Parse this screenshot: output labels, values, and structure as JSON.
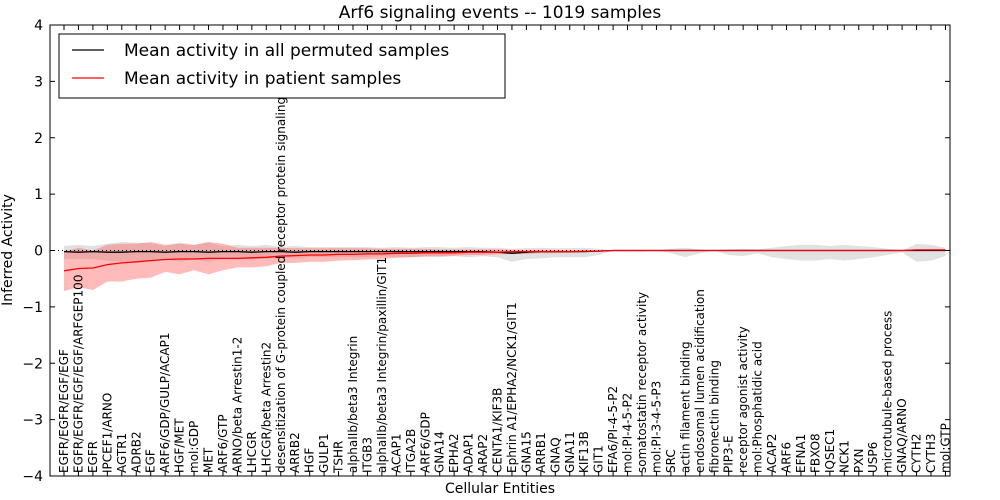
{
  "chart_data": {
    "type": "line",
    "title": "Arf6 signaling events -- 1019 samples",
    "xlabel": "Cellular Entities",
    "ylabel": "Inferred Activity",
    "ylim": [
      -4,
      4
    ],
    "yticks": [
      4,
      3,
      2,
      1,
      0,
      -1,
      -2,
      -3,
      -4
    ],
    "ytick_labels": [
      "4",
      "3",
      "2",
      "1",
      "0",
      "−1",
      "−2",
      "−3",
      "−4"
    ],
    "legend_position": "top-left",
    "legend": [
      {
        "label": "Mean activity in all permuted samples",
        "color": "#000000"
      },
      {
        "label": "Mean activity in patient samples",
        "color": "#ff0000"
      }
    ],
    "zero_line_style": "dotted",
    "categories": [
      "EGFR/EGFR/EGF/EGF",
      "EGFR/EGFR/EGF/EGF/ARFGEP100",
      "EGFR",
      "IPCEF1/ARNO",
      "AGTR1",
      "ADRB2",
      "EGF",
      "ARF6/GDP/GULP/ACAP1",
      "HGF/MET",
      "mol:GDP",
      "MET",
      "ARF6/GTP",
      "ARNO/beta Arrestin1-2",
      "LHCGR",
      "LHCGR/beta Arrestin2",
      "desensitization of G-protein coupled receptor protein signaling pathway",
      "ARRB2",
      "HGF",
      "GULP1",
      "TSHR",
      "alphaIIb/beta3 Integrin",
      "ITGB3",
      "alphaIIb/beta3 Integrin/paxillin/GIT1",
      "ACAP1",
      "ITGA2B",
      "ARF6/GDP",
      "GNA14",
      "EPHA2",
      "ADAP1",
      "ARAP2",
      "CENTA1/KIF3B",
      "Ephrin A1/EPHA2/NCK1/GIT1",
      "GNA15",
      "ARRB1",
      "GNAQ",
      "GNA11",
      "KIF13B",
      "GIT1",
      "EFA6/PI-4-5-P2",
      "mol:PI-4-5-P2",
      "somatostatin receptor activity",
      "mol:PI-3-4-5-P3",
      "SRC",
      "actin filament binding",
      "endosomal lumen acidification",
      "fibronectin binding",
      "PIP3-E",
      "receptor agonist activity",
      "mol:Phosphatidic acid",
      "ACAP2",
      "ARF6",
      "EFNA1",
      "FBXO8",
      "IQSEC1",
      "NCK1",
      "PXN",
      "USP6",
      "microtubule-based process",
      "GNAQ/ARNO",
      "CYTH2",
      "CYTH3",
      "mol:GTP"
    ],
    "series": [
      {
        "name": "Mean activity in all permuted samples",
        "color": "#000000",
        "values": [
          -0.02,
          -0.03,
          -0.02,
          -0.03,
          -0.03,
          -0.02,
          -0.02,
          -0.03,
          -0.02,
          -0.02,
          -0.03,
          -0.02,
          -0.02,
          -0.03,
          -0.02,
          -0.02,
          -0.03,
          -0.02,
          -0.02,
          -0.02,
          -0.02,
          -0.02,
          -0.02,
          -0.02,
          -0.02,
          -0.02,
          -0.02,
          -0.02,
          -0.02,
          -0.02,
          -0.03,
          -0.05,
          -0.03,
          -0.02,
          -0.02,
          -0.02,
          -0.02,
          -0.01,
          0,
          0,
          0,
          0,
          0,
          0,
          0,
          0,
          0,
          0,
          0,
          0,
          0,
          0,
          0,
          0,
          0,
          0,
          0,
          0,
          0,
          0,
          0,
          0
        ],
        "band_upper": [
          0.08,
          0.1,
          0.08,
          0.12,
          0.15,
          0.14,
          0.13,
          0.08,
          0.14,
          0.1,
          0.14,
          0.08,
          0.1,
          0.08,
          0.1,
          0.07,
          0.08,
          0.06,
          0.06,
          0.06,
          0.06,
          0.06,
          0.05,
          0.06,
          0.05,
          0.06,
          0.06,
          0.05,
          0.06,
          0.05,
          0.05,
          0.03,
          0.04,
          0.05,
          0.04,
          0.04,
          0.05,
          0.03,
          0,
          0,
          0,
          0,
          0.03,
          0.05,
          0.02,
          0,
          0.02,
          0.03,
          0.02,
          0.05,
          0.08,
          0.1,
          0.1,
          0.08,
          0.1,
          0.08,
          0.06,
          0.03,
          0,
          0.12,
          0.1,
          0.05
        ],
        "band_lower": [
          -0.15,
          -0.15,
          -0.15,
          -0.18,
          -0.2,
          -0.18,
          -0.2,
          -0.15,
          -0.2,
          -0.16,
          -0.2,
          -0.15,
          -0.16,
          -0.15,
          -0.15,
          -0.12,
          -0.14,
          -0.12,
          -0.12,
          -0.12,
          -0.12,
          -0.12,
          -0.1,
          -0.12,
          -0.12,
          -0.1,
          -0.12,
          -0.1,
          -0.12,
          -0.1,
          -0.12,
          -0.2,
          -0.15,
          -0.14,
          -0.12,
          -0.12,
          -0.12,
          -0.08,
          0,
          0,
          -0.02,
          0,
          -0.05,
          -0.12,
          -0.05,
          0,
          -0.08,
          -0.1,
          -0.05,
          -0.12,
          -0.15,
          -0.18,
          -0.18,
          -0.15,
          -0.18,
          -0.15,
          -0.12,
          -0.08,
          -0.03,
          -0.2,
          -0.18,
          -0.1
        ]
      },
      {
        "name": "Mean activity in patient samples",
        "color": "#ff0000",
        "values": [
          -0.36,
          -0.32,
          -0.31,
          -0.25,
          -0.22,
          -0.2,
          -0.18,
          -0.16,
          -0.15,
          -0.15,
          -0.14,
          -0.14,
          -0.14,
          -0.13,
          -0.12,
          -0.1,
          -0.09,
          -0.08,
          -0.08,
          -0.07,
          -0.07,
          -0.06,
          -0.06,
          -0.05,
          -0.05,
          -0.04,
          -0.04,
          -0.04,
          -0.03,
          -0.03,
          -0.03,
          -0.02,
          -0.02,
          -0.02,
          -0.02,
          -0.02,
          -0.01,
          -0.01,
          0,
          0,
          0,
          0,
          0,
          0,
          0,
          0,
          0,
          0,
          0,
          0,
          0,
          0,
          0,
          0,
          0,
          0,
          0,
          0,
          0,
          0.01,
          0.01,
          0.01
        ],
        "band_upper": [
          -0.02,
          0.05,
          0,
          0.1,
          0.12,
          0.12,
          0.15,
          0.1,
          0.12,
          0.1,
          0.15,
          0.12,
          0.05,
          0.05,
          0.05,
          0.05,
          0.04,
          0.04,
          0.04,
          0.04,
          0.04,
          0.04,
          0.03,
          0.03,
          0.03,
          0.03,
          0.02,
          0.02,
          0.02,
          0.02,
          0.02,
          0.01,
          0.01,
          0.01,
          0.01,
          0,
          0,
          0,
          0,
          0,
          0,
          0,
          0,
          0,
          0,
          0,
          0,
          0,
          0,
          0,
          0,
          0,
          0,
          0,
          0,
          0,
          0,
          0,
          0,
          0.02,
          0.02,
          0.02
        ],
        "band_lower": [
          -0.72,
          -0.65,
          -0.7,
          -0.55,
          -0.55,
          -0.5,
          -0.48,
          -0.38,
          -0.42,
          -0.35,
          -0.42,
          -0.35,
          -0.3,
          -0.3,
          -0.28,
          -0.22,
          -0.22,
          -0.2,
          -0.2,
          -0.18,
          -0.17,
          -0.16,
          -0.15,
          -0.13,
          -0.12,
          -0.11,
          -0.1,
          -0.09,
          -0.08,
          -0.08,
          -0.07,
          -0.06,
          -0.06,
          -0.05,
          -0.05,
          -0.04,
          -0.03,
          -0.02,
          -0.01,
          -0.01,
          -0.01,
          0,
          0,
          0,
          0,
          0,
          0,
          0,
          0,
          0,
          0,
          0,
          0,
          0,
          0,
          0,
          0,
          0,
          0,
          -0.01,
          0,
          0
        ]
      }
    ]
  }
}
